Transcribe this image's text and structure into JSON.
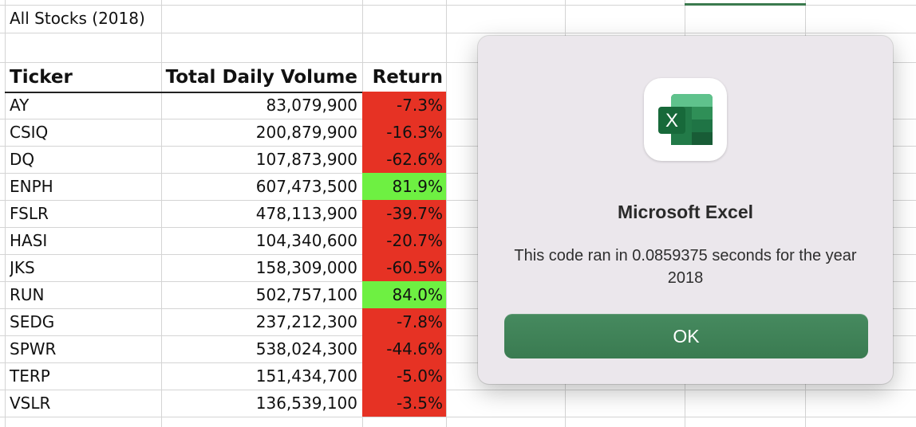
{
  "sheet": {
    "title": "All Stocks (2018)",
    "headers": {
      "ticker": "Ticker",
      "volume": "Total Daily Volume",
      "return": "Return"
    },
    "rows": [
      {
        "ticker": "AY",
        "volume": "83,079,900",
        "return": "-7.3%",
        "status": "negative"
      },
      {
        "ticker": "CSIQ",
        "volume": "200,879,900",
        "return": "-16.3%",
        "status": "negative"
      },
      {
        "ticker": "DQ",
        "volume": "107,873,900",
        "return": "-62.6%",
        "status": "negative"
      },
      {
        "ticker": "ENPH",
        "volume": "607,473,500",
        "return": "81.9%",
        "status": "positive"
      },
      {
        "ticker": "FSLR",
        "volume": "478,113,900",
        "return": "-39.7%",
        "status": "negative"
      },
      {
        "ticker": "HASI",
        "volume": "104,340,600",
        "return": "-20.7%",
        "status": "negative"
      },
      {
        "ticker": "JKS",
        "volume": "158,309,000",
        "return": "-60.5%",
        "status": "negative"
      },
      {
        "ticker": "RUN",
        "volume": "502,757,100",
        "return": "84.0%",
        "status": "positive"
      },
      {
        "ticker": "SEDG",
        "volume": "237,212,300",
        "return": "-7.8%",
        "status": "negative"
      },
      {
        "ticker": "SPWR",
        "volume": "538,024,300",
        "return": "-44.6%",
        "status": "negative"
      },
      {
        "ticker": "TERP",
        "volume": "151,434,700",
        "return": "-5.0%",
        "status": "negative"
      },
      {
        "ticker": "VSLR",
        "volume": "136,539,100",
        "return": "-3.5%",
        "status": "negative"
      }
    ],
    "colors": {
      "negative": "#e63224",
      "positive": "#6ef042"
    }
  },
  "dialog": {
    "app_icon": "excel-icon",
    "icon_letter": "X",
    "title": "Microsoft Excel",
    "message": "This code ran in 0.0859375 seconds for the year 2018",
    "ok_label": "OK",
    "accent": "#3f8156"
  }
}
